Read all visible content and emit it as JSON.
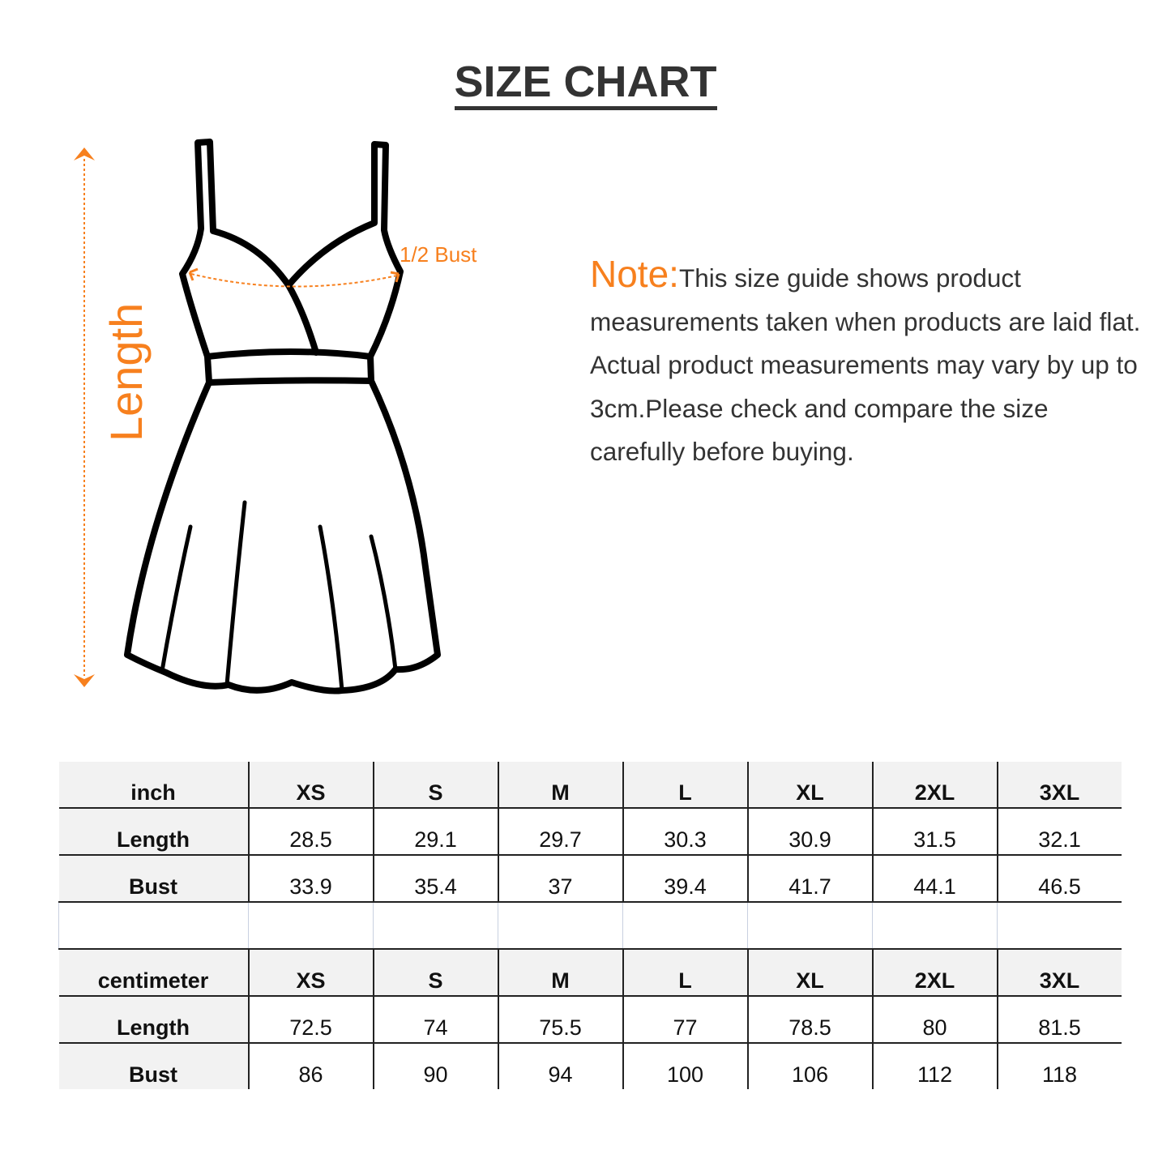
{
  "title": "SIZE CHART",
  "diagram": {
    "length_label": "Length",
    "bust_label": "1/2 Bust",
    "accent_color": "#f7801e",
    "icon": "dress-outline-icon"
  },
  "note": {
    "label": "Note:",
    "text": "This size guide shows product measurements taken when products are laid flat. Actual product measurements may vary by up to 3cm.Please check and compare the size carefully before buying."
  },
  "tables": [
    {
      "unit": "inch",
      "sizes": [
        "XS",
        "S",
        "M",
        "L",
        "XL",
        "2XL",
        "3XL"
      ],
      "rows": [
        {
          "label": "Length",
          "values": [
            "28.5",
            "29.1",
            "29.7",
            "30.3",
            "30.9",
            "31.5",
            "32.1"
          ]
        },
        {
          "label": "Bust",
          "values": [
            "33.9",
            "35.4",
            "37",
            "39.4",
            "41.7",
            "44.1",
            "46.5"
          ]
        }
      ]
    },
    {
      "unit": "centimeter",
      "sizes": [
        "XS",
        "S",
        "M",
        "L",
        "XL",
        "2XL",
        "3XL"
      ],
      "rows": [
        {
          "label": "Length",
          "values": [
            "72.5",
            "74",
            "75.5",
            "77",
            "78.5",
            "80",
            "81.5"
          ]
        },
        {
          "label": "Bust",
          "values": [
            "86",
            "90",
            "94",
            "100",
            "106",
            "112",
            "118"
          ]
        }
      ]
    }
  ]
}
